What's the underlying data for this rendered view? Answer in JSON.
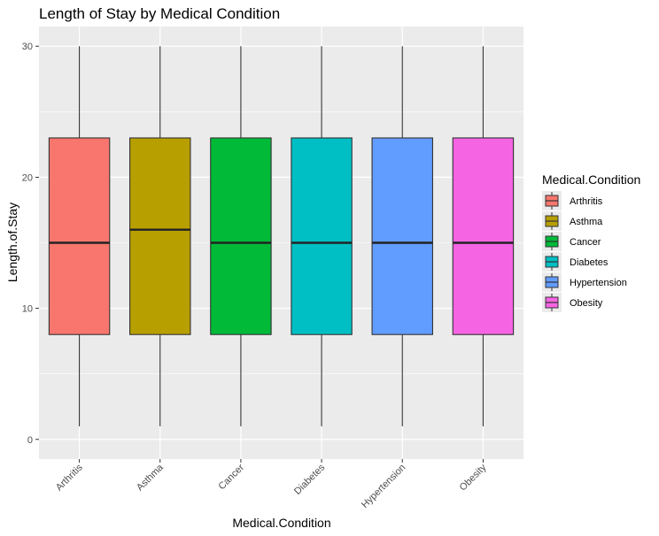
{
  "chart_data": {
    "type": "boxplot",
    "title": "Length of Stay by Medical Condition",
    "xlabel": "Medical.Condition",
    "ylabel": "Length.of.Stay",
    "ylim": [
      -1.5,
      31.5
    ],
    "yticks": [
      0,
      10,
      20,
      30
    ],
    "grid": true,
    "legend_title": "Medical.Condition",
    "legend_position": "right",
    "categories": [
      "Arthritis",
      "Asthma",
      "Cancer",
      "Diabetes",
      "Hypertension",
      "Obesity"
    ],
    "colors": [
      "#F8766D",
      "#B79F00",
      "#00BA38",
      "#00BFC4",
      "#619CFF",
      "#F564E3"
    ],
    "boxes": [
      {
        "category": "Arthritis",
        "min": 1,
        "q1": 8,
        "median": 15,
        "q3": 23,
        "max": 30
      },
      {
        "category": "Asthma",
        "min": 1,
        "q1": 8,
        "median": 16,
        "q3": 23,
        "max": 30
      },
      {
        "category": "Cancer",
        "min": 1,
        "q1": 8,
        "median": 15,
        "q3": 23,
        "max": 30
      },
      {
        "category": "Diabetes",
        "min": 1,
        "q1": 8,
        "median": 15,
        "q3": 23,
        "max": 30
      },
      {
        "category": "Hypertension",
        "min": 1,
        "q1": 8,
        "median": 15,
        "q3": 23,
        "max": 30
      },
      {
        "category": "Obesity",
        "min": 1,
        "q1": 8,
        "median": 15,
        "q3": 23,
        "max": 30
      }
    ]
  }
}
